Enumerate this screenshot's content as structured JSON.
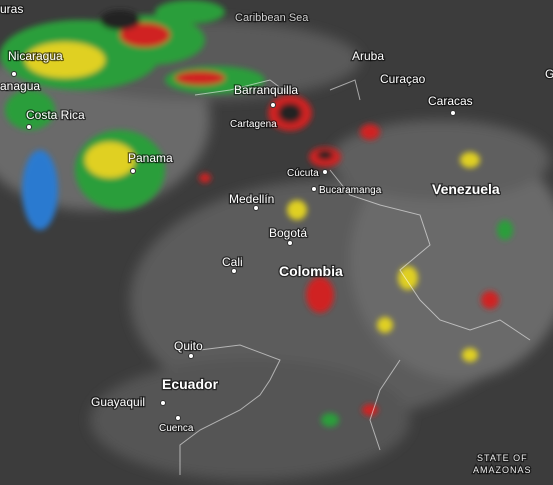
{
  "places": [
    "uras",
    "Caribbean Sea",
    "Nicaragua",
    "anagua",
    "Aruba",
    "Curaçao",
    "G",
    "Barranquilla",
    "Cartagena",
    "Caracas",
    "Costa Rica",
    "Panama",
    "Cúcuta",
    "Bucaramanga",
    "Venezuela",
    "Medellín",
    "Bogotá",
    "Cali",
    "Colombia",
    "Quito",
    "Ecuador",
    "Guayaquil",
    "Cuenca",
    "STATE OF",
    "AMAZONAS"
  ]
}
